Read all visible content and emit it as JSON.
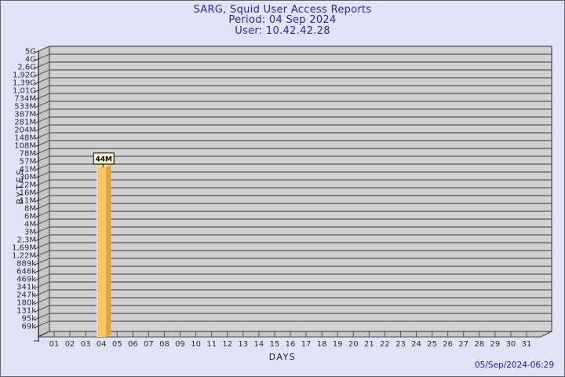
{
  "header": {
    "title": "SARG, Squid User Access Reports",
    "period": "Period: 04 Sep 2024",
    "user": "User: 10.42.42.28"
  },
  "footer": {
    "generated": "05/Sep/2024-06:29"
  },
  "colors": {
    "background": "#E3E3F7",
    "title_text": "#2828A0",
    "footer_text": "#2222A8",
    "plot_bg": "#D2D2D2",
    "wall": "#C7C7C7",
    "gridline": "#6A6A6A",
    "plot_border": "#47474F",
    "axis_text": "#2E2E2E",
    "bar_front": "#FDC464",
    "bar_side": "#DCA248",
    "bar_top": "#FFDB92",
    "bar_highlight": "#FFE3A0",
    "value_box_bg": "#FFFFCF",
    "value_box_border": "#000000"
  },
  "chart_data": {
    "type": "bar",
    "title": "SARG, Squid User Access Reports",
    "subtitle": "Period: 04 Sep 2024 — User: 10.42.42.28",
    "xlabel": "DAYS",
    "ylabel": "BYTES",
    "y_scale": "log",
    "grid": "horizontal",
    "legend": null,
    "y_tick_labels": [
      "5G",
      "4G",
      "2,6G",
      "1,92G",
      "1,39G",
      "1,01G",
      "734M",
      "533M",
      "387M",
      "281M",
      "204M",
      "148M",
      "108M",
      "78M",
      "57M",
      "41M",
      "30M",
      "22M",
      "16M",
      "11M",
      "8M",
      "6M",
      "4M",
      "3M",
      "2,3M",
      "1,69M",
      "1,22M",
      "889k",
      "646k",
      "469k",
      "341k",
      "247k",
      "180k",
      "131k",
      "95k",
      "69k"
    ],
    "categories": [
      "01",
      "02",
      "03",
      "04",
      "05",
      "06",
      "07",
      "08",
      "09",
      "10",
      "11",
      "12",
      "13",
      "14",
      "15",
      "16",
      "17",
      "18",
      "19",
      "20",
      "21",
      "22",
      "23",
      "24",
      "25",
      "26",
      "27",
      "28",
      "29",
      "30",
      "31"
    ],
    "series": [
      {
        "name": "10.42.42.28",
        "bars": [
          {
            "day": "04",
            "label": "44M",
            "bytes": 44000000
          }
        ]
      }
    ]
  }
}
